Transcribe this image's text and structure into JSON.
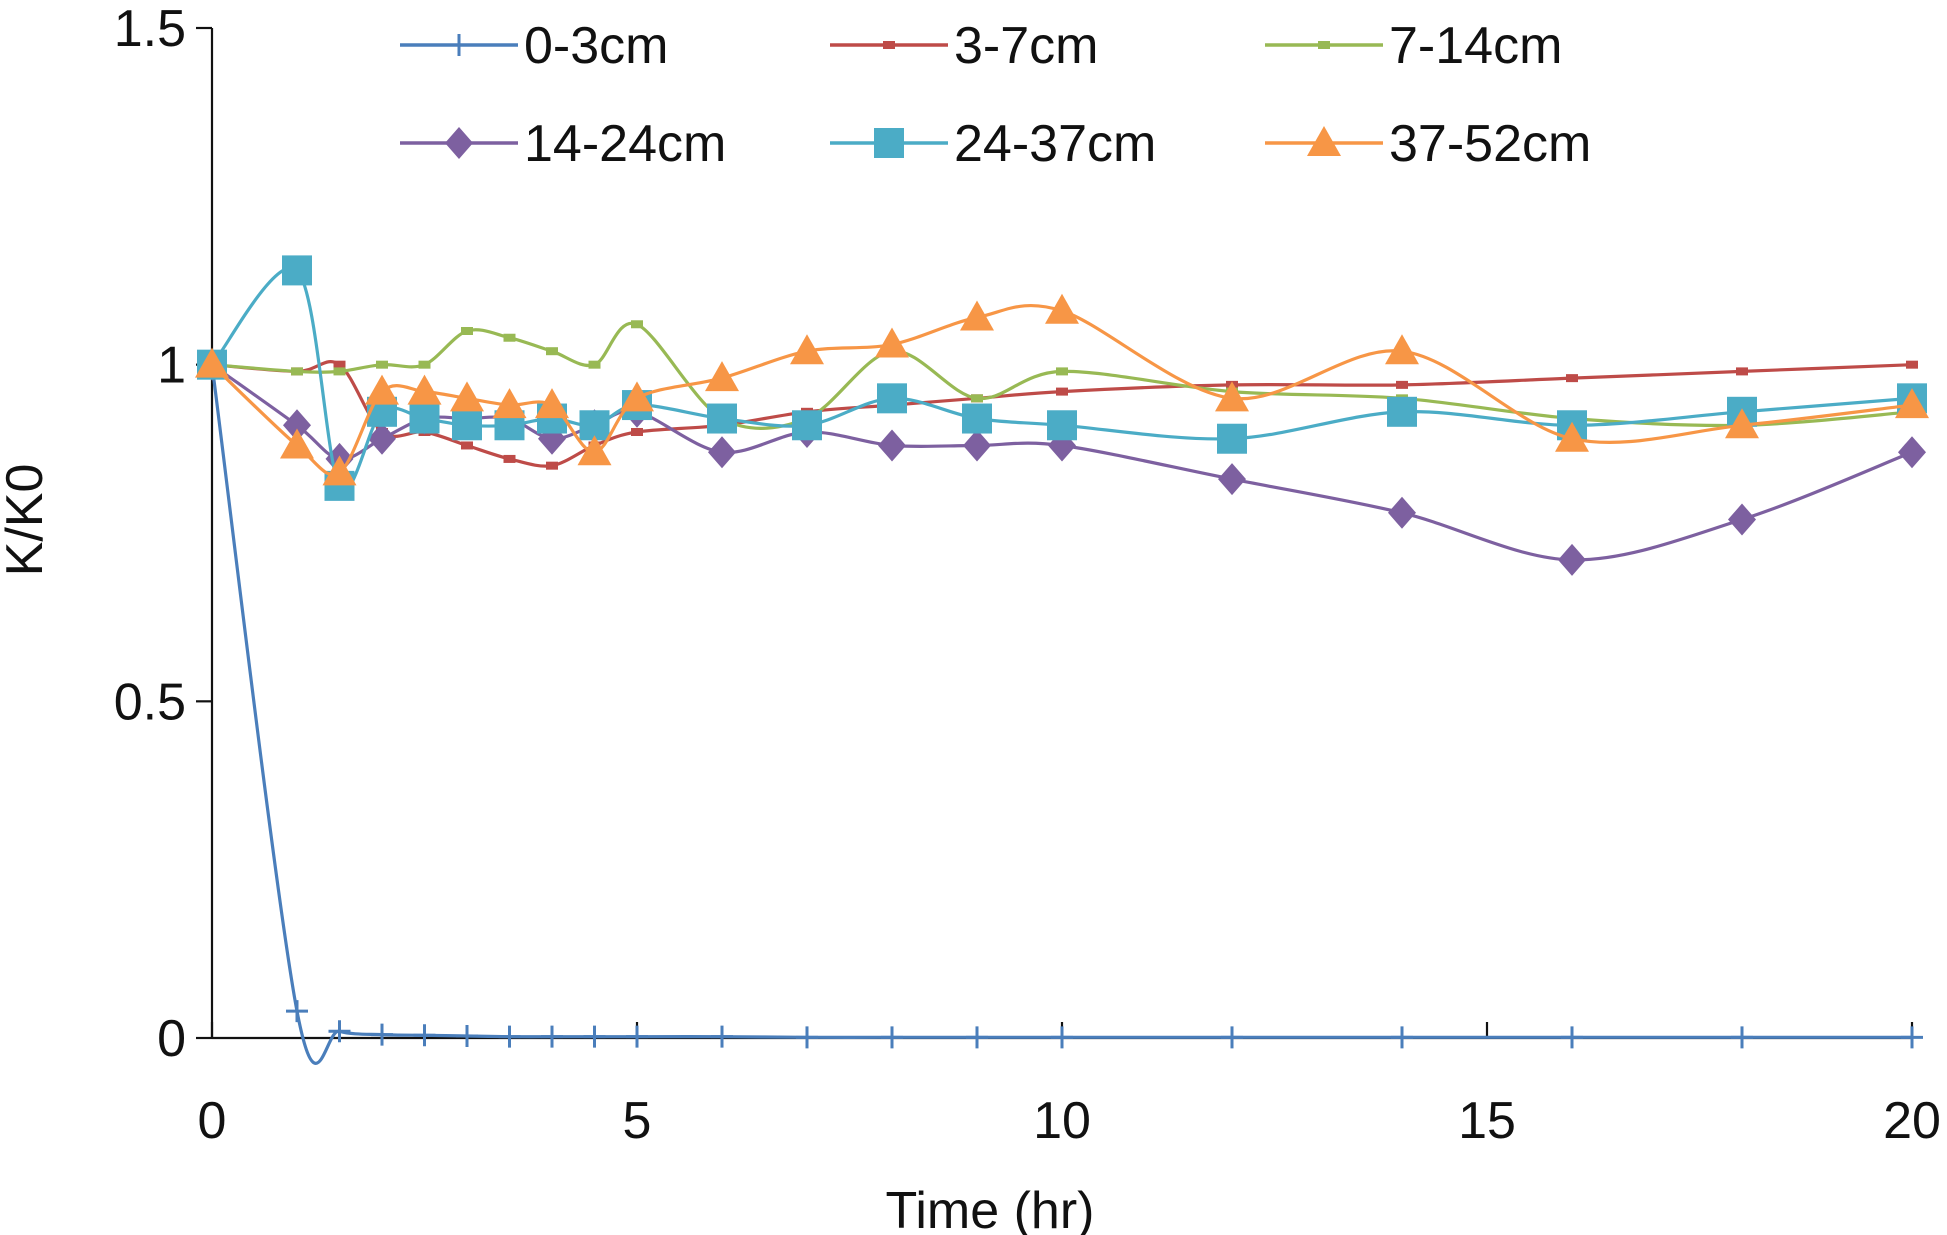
{
  "chart_data": {
    "type": "line",
    "title": "",
    "xlabel": "Time (hr)",
    "ylabel": "K/K0",
    "xlim": [
      0,
      20
    ],
    "ylim": [
      0,
      1.5
    ],
    "x_ticks": [
      "0",
      "5",
      "10",
      "15",
      "20"
    ],
    "y_ticks": [
      "0",
      "0.5",
      "1",
      "1.5"
    ],
    "grid": false,
    "legend_position": "top",
    "series": [
      {
        "name": "0-3cm",
        "color": "#4a7ebb",
        "marker": "plus",
        "points": [
          [
            0,
            1.0
          ],
          [
            1,
            0.04
          ],
          [
            1.5,
            0.01
          ],
          [
            2,
            0.005
          ],
          [
            2.5,
            0.004
          ],
          [
            3,
            0.003
          ],
          [
            3.5,
            0.002
          ],
          [
            4,
            0.002
          ],
          [
            4.5,
            0.002
          ],
          [
            5,
            0.002
          ],
          [
            6,
            0.002
          ],
          [
            7,
            0.001
          ],
          [
            8,
            0.001
          ],
          [
            9,
            0.001
          ],
          [
            10,
            0.001
          ],
          [
            12,
            0.001
          ],
          [
            14,
            0.001
          ],
          [
            16,
            0.001
          ],
          [
            18,
            0.001
          ],
          [
            20,
            0.001
          ]
        ]
      },
      {
        "name": "3-7cm",
        "color": "#be4b48",
        "marker": "dash",
        "points": [
          [
            0,
            1.0
          ],
          [
            1,
            0.99
          ],
          [
            1.5,
            1.0
          ],
          [
            2,
            0.9
          ],
          [
            2.5,
            0.9
          ],
          [
            3,
            0.88
          ],
          [
            3.5,
            0.86
          ],
          [
            4,
            0.85
          ],
          [
            4.5,
            0.88
          ],
          [
            5,
            0.9
          ],
          [
            6,
            0.91
          ],
          [
            7,
            0.93
          ],
          [
            8,
            0.94
          ],
          [
            9,
            0.95
          ],
          [
            10,
            0.96
          ],
          [
            12,
            0.97
          ],
          [
            14,
            0.97
          ],
          [
            16,
            0.98
          ],
          [
            18,
            0.99
          ],
          [
            20,
            1.0
          ]
        ]
      },
      {
        "name": "7-14cm",
        "color": "#98b954",
        "marker": "dash",
        "points": [
          [
            0,
            1.0
          ],
          [
            1,
            0.99
          ],
          [
            1.5,
            0.99
          ],
          [
            2,
            1.0
          ],
          [
            2.5,
            1.0
          ],
          [
            3,
            1.05
          ],
          [
            3.5,
            1.04
          ],
          [
            4,
            1.02
          ],
          [
            4.5,
            1.0
          ],
          [
            5,
            1.06
          ],
          [
            6,
            0.92
          ],
          [
            7,
            0.92
          ],
          [
            8,
            1.02
          ],
          [
            9,
            0.95
          ],
          [
            10,
            0.99
          ],
          [
            12,
            0.96
          ],
          [
            14,
            0.95
          ],
          [
            16,
            0.92
          ],
          [
            18,
            0.91
          ],
          [
            20,
            0.93
          ]
        ]
      },
      {
        "name": "14-24cm",
        "color": "#7d60a0",
        "marker": "diamond",
        "points": [
          [
            0,
            1.0
          ],
          [
            1,
            0.91
          ],
          [
            1.5,
            0.86
          ],
          [
            2,
            0.89
          ],
          [
            2.5,
            0.92
          ],
          [
            3,
            0.92
          ],
          [
            3.5,
            0.92
          ],
          [
            4,
            0.89
          ],
          [
            4.5,
            0.91
          ],
          [
            5,
            0.93
          ],
          [
            6,
            0.87
          ],
          [
            7,
            0.9
          ],
          [
            8,
            0.88
          ],
          [
            9,
            0.88
          ],
          [
            10,
            0.88
          ],
          [
            12,
            0.83
          ],
          [
            14,
            0.78
          ],
          [
            16,
            0.71
          ],
          [
            18,
            0.77
          ],
          [
            20,
            0.87
          ]
        ]
      },
      {
        "name": "24-37cm",
        "color": "#4bacc6",
        "marker": "square",
        "points": [
          [
            0,
            1.0
          ],
          [
            1,
            1.14
          ],
          [
            1.5,
            0.82
          ],
          [
            2,
            0.93
          ],
          [
            2.5,
            0.92
          ],
          [
            3,
            0.91
          ],
          [
            3.5,
            0.91
          ],
          [
            4,
            0.92
          ],
          [
            4.5,
            0.91
          ],
          [
            5,
            0.94
          ],
          [
            6,
            0.92
          ],
          [
            7,
            0.91
          ],
          [
            8,
            0.95
          ],
          [
            9,
            0.92
          ],
          [
            10,
            0.91
          ],
          [
            12,
            0.89
          ],
          [
            14,
            0.93
          ],
          [
            16,
            0.91
          ],
          [
            18,
            0.93
          ],
          [
            20,
            0.95
          ]
        ]
      },
      {
        "name": "37-52cm",
        "color": "#f79646",
        "marker": "triangle",
        "points": [
          [
            0,
            1.0
          ],
          [
            1,
            0.88
          ],
          [
            1.5,
            0.84
          ],
          [
            2,
            0.96
          ],
          [
            2.5,
            0.96
          ],
          [
            3,
            0.95
          ],
          [
            3.5,
            0.94
          ],
          [
            4,
            0.94
          ],
          [
            4.5,
            0.87
          ],
          [
            5,
            0.95
          ],
          [
            6,
            0.98
          ],
          [
            7,
            1.02
          ],
          [
            8,
            1.03
          ],
          [
            9,
            1.07
          ],
          [
            10,
            1.08
          ],
          [
            12,
            0.95
          ],
          [
            14,
            1.02
          ],
          [
            16,
            0.89
          ],
          [
            18,
            0.91
          ],
          [
            20,
            0.94
          ]
        ]
      }
    ]
  }
}
